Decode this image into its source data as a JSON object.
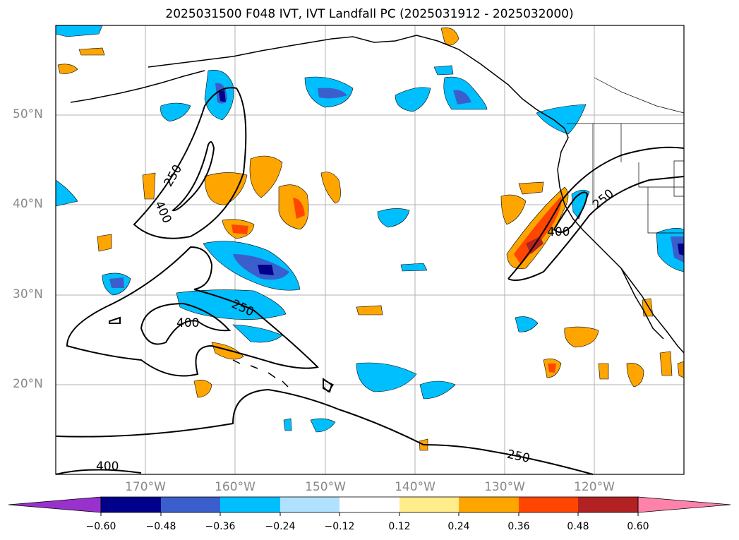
{
  "title": "2025031500 F048 IVT, IVT Landfall PC (2025031912 - 2025032000)",
  "map": {
    "lat_labels": [
      "50°N",
      "40°N",
      "30°N",
      "20°N"
    ],
    "lon_labels": [
      "170°W",
      "160°W",
      "150°W",
      "140°W",
      "130°W",
      "120°W"
    ],
    "contour_labels": [
      "250",
      "400",
      "250",
      "400",
      "250",
      "400",
      "250",
      "400"
    ]
  },
  "colorbar": {
    "ticks": [
      "−0.60",
      "−0.48",
      "−0.36",
      "−0.24",
      "−0.12",
      "0.12",
      "0.24",
      "0.36",
      "0.48",
      "0.60"
    ],
    "colors": [
      "#9932cc",
      "#00008b",
      "#3a5fcd",
      "#00bfff",
      "#b0e2ff",
      "#ffffff",
      "#ffec8b",
      "#ffa500",
      "#ff4500",
      "#b22222",
      "#ff82ab"
    ]
  }
}
